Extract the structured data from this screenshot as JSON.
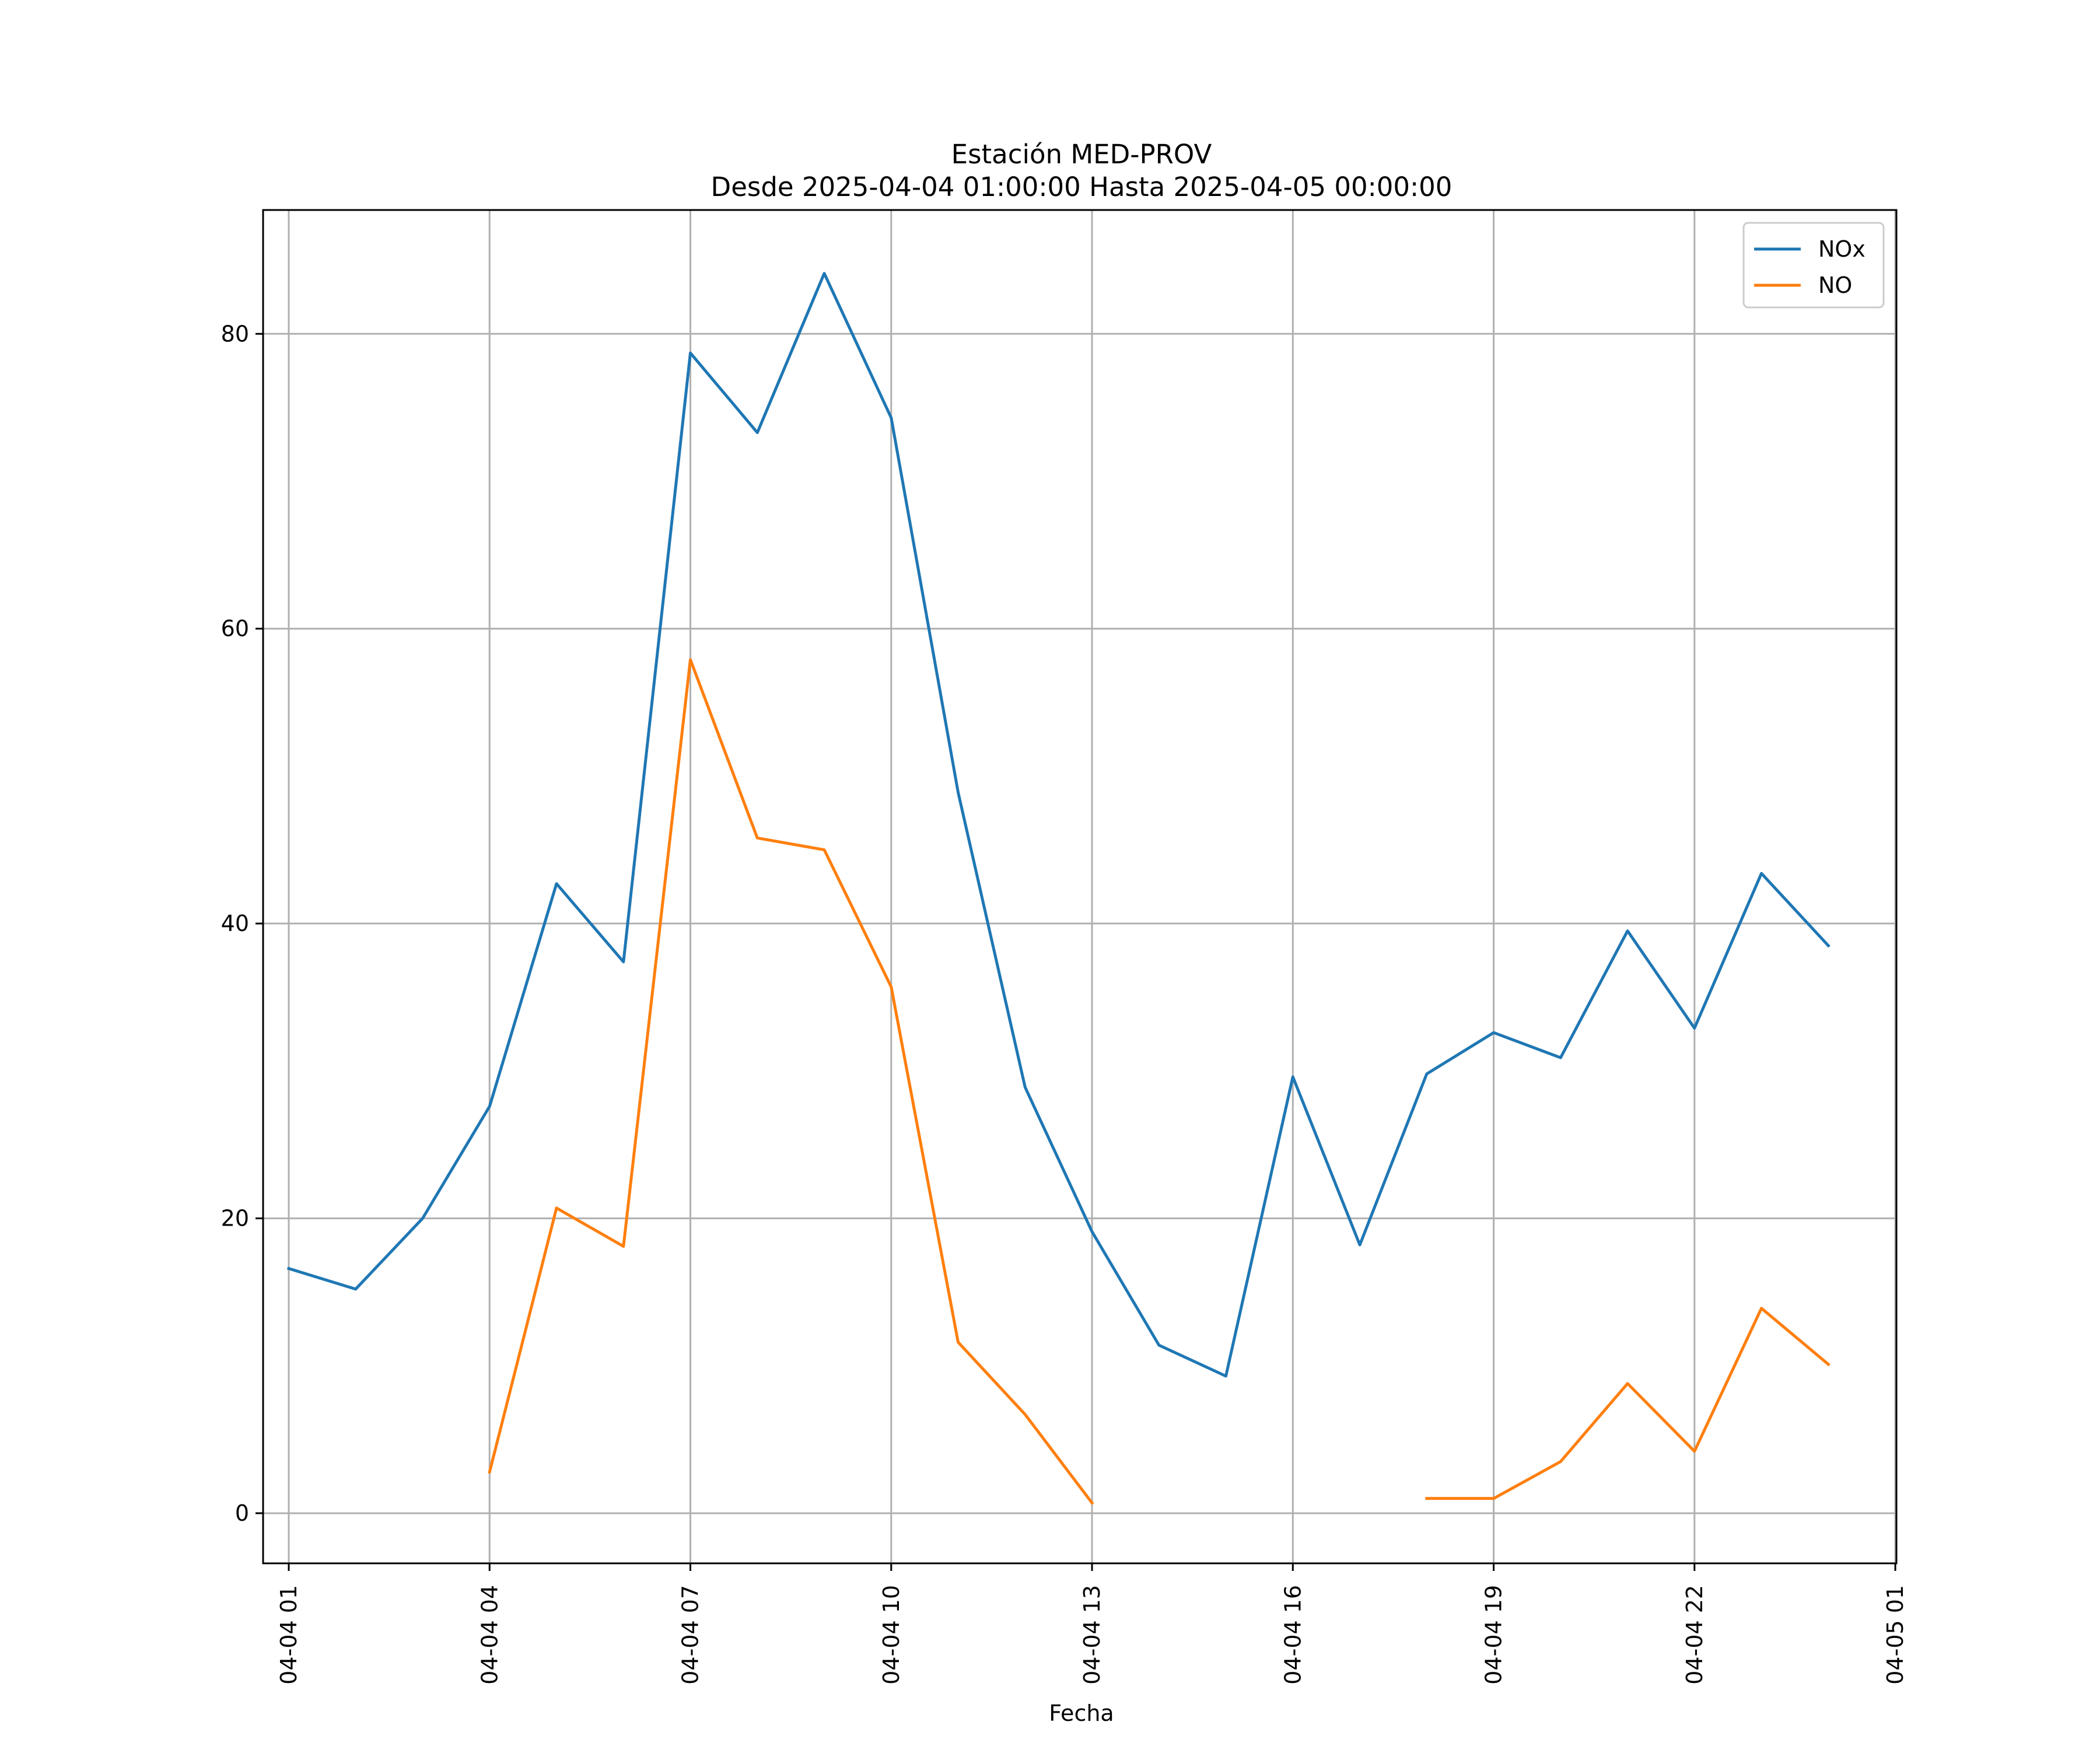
{
  "chart_data": {
    "type": "line",
    "title": "Estación MED-PROV",
    "subtitle": "Desde 2025-04-04 01:00:00 Hasta 2025-04-05 00:00:00",
    "xlabel": "Fecha",
    "ylabel": "",
    "x": [
      "2025-04-04 01:00",
      "2025-04-04 02:00",
      "2025-04-04 03:00",
      "2025-04-04 04:00",
      "2025-04-04 05:00",
      "2025-04-04 06:00",
      "2025-04-04 07:00",
      "2025-04-04 08:00",
      "2025-04-04 09:00",
      "2025-04-04 10:00",
      "2025-04-04 11:00",
      "2025-04-04 12:00",
      "2025-04-04 13:00",
      "2025-04-04 14:00",
      "2025-04-04 15:00",
      "2025-04-04 16:00",
      "2025-04-04 17:00",
      "2025-04-04 18:00",
      "2025-04-04 19:00",
      "2025-04-04 20:00",
      "2025-04-04 21:00",
      "2025-04-04 22:00",
      "2025-04-04 23:00",
      "2025-04-05 00:00"
    ],
    "series": [
      {
        "name": "NOx",
        "color": "#1f77b4",
        "values": [
          16.6,
          15.2,
          20.0,
          27.6,
          42.7,
          37.4,
          78.7,
          73.3,
          84.1,
          74.3,
          48.9,
          28.9,
          19.1,
          11.4,
          9.3,
          29.6,
          18.2,
          29.8,
          32.6,
          30.9,
          39.5,
          32.9,
          43.4,
          38.5
        ]
      },
      {
        "name": "NO",
        "color": "#ff7f0e",
        "values": [
          null,
          null,
          null,
          2.8,
          20.7,
          18.1,
          57.9,
          45.8,
          45.0,
          35.7,
          11.6,
          6.7,
          0.7,
          null,
          null,
          null,
          null,
          1.0,
          1.0,
          3.5,
          8.8,
          4.2,
          13.9,
          10.1
        ]
      }
    ],
    "ylim": [
      -3.4,
      88.4
    ],
    "xlim": [
      "2025-04-04 00:37",
      "2025-04-05 01:01"
    ],
    "yticks": [
      0,
      20,
      40,
      60,
      80
    ],
    "xticks": [
      {
        "at": "2025-04-04 01:00",
        "label": "04-04 01"
      },
      {
        "at": "2025-04-04 04:00",
        "label": "04-04 04"
      },
      {
        "at": "2025-04-04 07:00",
        "label": "04-04 07"
      },
      {
        "at": "2025-04-04 10:00",
        "label": "04-04 10"
      },
      {
        "at": "2025-04-04 13:00",
        "label": "04-04 13"
      },
      {
        "at": "2025-04-04 16:00",
        "label": "04-04 16"
      },
      {
        "at": "2025-04-04 19:00",
        "label": "04-04 19"
      },
      {
        "at": "2025-04-04 22:00",
        "label": "04-04 22"
      },
      {
        "at": "2025-04-05 01:00",
        "label": "04-05 01"
      }
    ],
    "grid": true,
    "legend": "top-right"
  }
}
